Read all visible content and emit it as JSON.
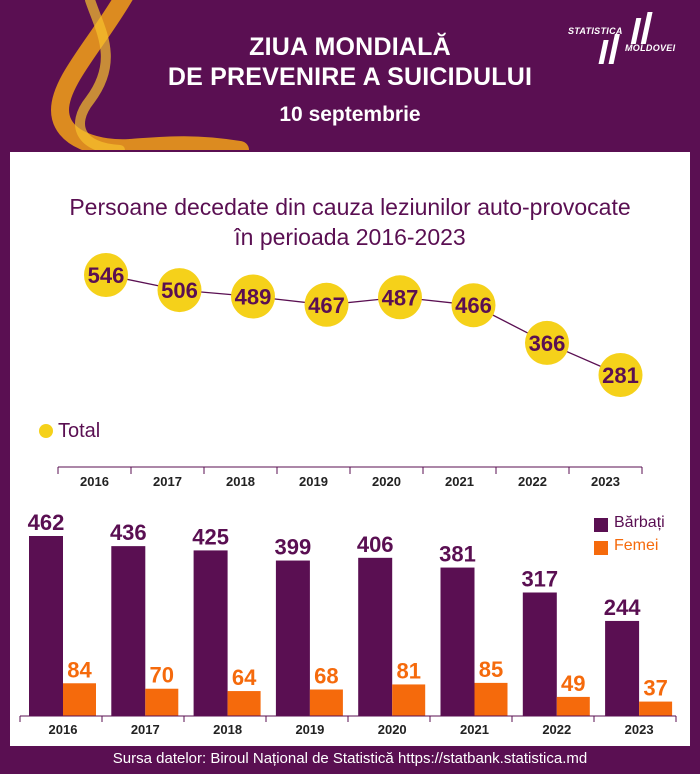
{
  "header": {
    "title_line1": "ZIUA MONDIALĂ",
    "title_line2": "DE PREVENIRE A SUICIDULUI",
    "date": "10 septembrie",
    "logo_top": "STATISTICA",
    "logo_bottom": "MOLDOVEI"
  },
  "chart_title_line1": "Persoane decedate din cauza leziunilor auto-provocate",
  "chart_title_line2": "în perioada 2016-2023",
  "colors": {
    "background": "#5a0f52",
    "total": "#f5d11a",
    "men": "#5a0f52",
    "women": "#f56a0c",
    "ribbon": "#f3a117"
  },
  "chart_data": [
    {
      "type": "line",
      "x": [
        "2016",
        "2017",
        "2018",
        "2019",
        "2020",
        "2021",
        "2022",
        "2023"
      ],
      "series": [
        {
          "name": "Total",
          "values": [
            546,
            506,
            489,
            467,
            487,
            466,
            366,
            281
          ]
        }
      ],
      "legend": "bottom-left"
    },
    {
      "type": "bar",
      "categories": [
        "2016",
        "2017",
        "2018",
        "2019",
        "2020",
        "2021",
        "2022",
        "2023"
      ],
      "series": [
        {
          "name": "Bărbați",
          "values": [
            462,
            436,
            425,
            399,
            406,
            381,
            317,
            244
          ]
        },
        {
          "name": "Femei",
          "values": [
            84,
            70,
            64,
            68,
            81,
            85,
            49,
            37
          ]
        }
      ],
      "legend": "top-right"
    }
  ],
  "footer": "Sursa datelor: Biroul Național de Statistică https://statbank.statistica.md"
}
